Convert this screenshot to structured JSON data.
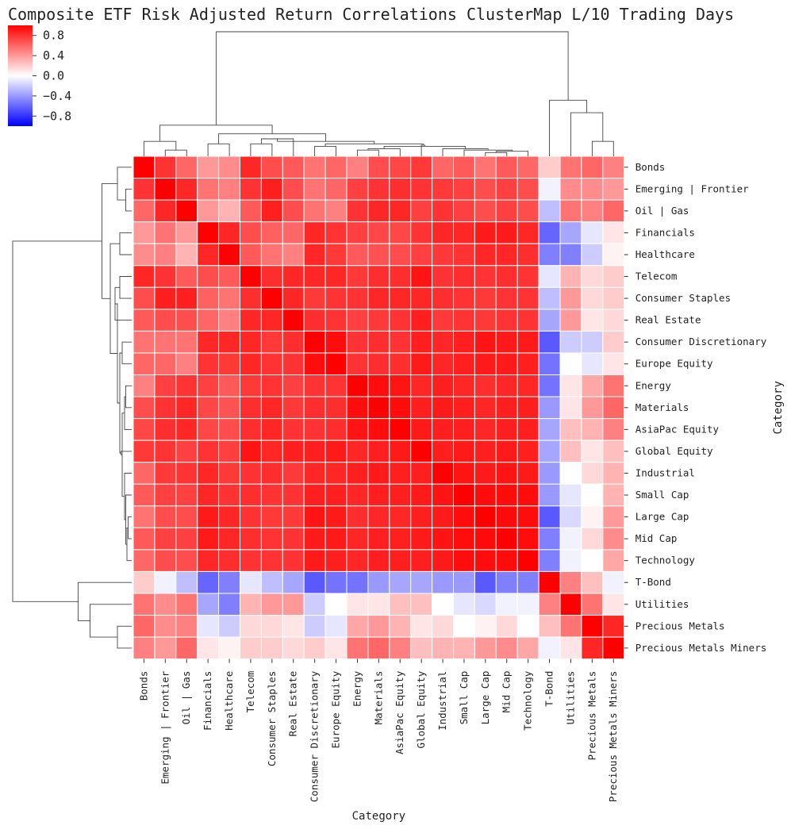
{
  "chart_data": {
    "type": "heatmap",
    "title": "Composite ETF Risk Adjusted Return Correlations ClusterMap L/10 Trading Days",
    "xlabel": "Category",
    "ylabel": "Category",
    "categories": [
      "Bonds",
      "Emerging | Frontier",
      "Oil | Gas",
      "Financials",
      "Healthcare",
      "Telecom",
      "Consumer Staples",
      "Real Estate",
      "Consumer Discretionary",
      "Europe Equity",
      "Energy",
      "Materials",
      "AsiaPac Equity",
      "Global Equity",
      "Industrial",
      "Small Cap",
      "Large Cap",
      "Mid Cap",
      "Technology",
      "T-Bond",
      "Utilities",
      "Precious Metals",
      "Precious Metals Miners"
    ],
    "colorbar": {
      "min": -1,
      "max": 1,
      "ticks": [
        0.8,
        0.4,
        0.0,
        -0.4,
        -0.8
      ],
      "tick_labels": [
        "0.8",
        "0.4",
        "0.0",
        "−0.4",
        "−0.8"
      ],
      "colors": {
        "low": "#0000ff",
        "mid": "#ffffff",
        "high": "#ff0000"
      }
    },
    "values": [
      [
        1.0,
        0.8,
        0.6,
        0.4,
        0.45,
        0.85,
        0.7,
        0.65,
        0.55,
        0.6,
        0.5,
        0.7,
        0.72,
        0.78,
        0.6,
        0.65,
        0.55,
        0.65,
        0.6,
        0.2,
        0.55,
        0.6,
        0.5
      ],
      [
        0.8,
        1.0,
        0.85,
        0.55,
        0.5,
        0.8,
        0.88,
        0.7,
        0.55,
        0.6,
        0.75,
        0.8,
        0.82,
        0.8,
        0.78,
        0.75,
        0.7,
        0.75,
        0.7,
        -0.05,
        0.45,
        0.45,
        0.4
      ],
      [
        0.6,
        0.85,
        1.0,
        0.4,
        0.3,
        0.65,
        0.88,
        0.7,
        0.55,
        0.5,
        0.8,
        0.85,
        0.85,
        0.75,
        0.8,
        0.75,
        0.7,
        0.75,
        0.7,
        -0.25,
        0.55,
        0.5,
        0.6
      ],
      [
        0.4,
        0.55,
        0.4,
        1.0,
        0.85,
        0.7,
        0.62,
        0.6,
        0.85,
        0.8,
        0.75,
        0.72,
        0.72,
        0.8,
        0.85,
        0.85,
        0.9,
        0.9,
        0.85,
        -0.6,
        -0.35,
        -0.1,
        0.1
      ],
      [
        0.45,
        0.5,
        0.3,
        0.85,
        1.0,
        0.65,
        0.55,
        0.5,
        0.85,
        0.78,
        0.65,
        0.68,
        0.7,
        0.75,
        0.78,
        0.8,
        0.85,
        0.85,
        0.82,
        -0.5,
        -0.5,
        -0.2,
        0.05
      ],
      [
        0.85,
        0.8,
        0.65,
        0.7,
        0.65,
        1.0,
        0.82,
        0.85,
        0.85,
        0.85,
        0.78,
        0.82,
        0.82,
        0.92,
        0.8,
        0.82,
        0.8,
        0.82,
        0.8,
        -0.1,
        0.3,
        0.15,
        0.2
      ],
      [
        0.7,
        0.88,
        0.88,
        0.62,
        0.55,
        0.82,
        1.0,
        0.85,
        0.78,
        0.8,
        0.8,
        0.85,
        0.85,
        0.85,
        0.82,
        0.8,
        0.78,
        0.8,
        0.8,
        -0.25,
        0.4,
        0.15,
        0.2
      ],
      [
        0.65,
        0.7,
        0.7,
        0.6,
        0.5,
        0.85,
        0.85,
        1.0,
        0.82,
        0.8,
        0.75,
        0.78,
        0.8,
        0.88,
        0.78,
        0.8,
        0.78,
        0.8,
        0.8,
        -0.35,
        0.4,
        0.1,
        0.15
      ],
      [
        0.55,
        0.55,
        0.55,
        0.85,
        0.85,
        0.85,
        0.78,
        0.82,
        1.0,
        0.95,
        0.8,
        0.82,
        0.8,
        0.88,
        0.85,
        0.88,
        0.92,
        0.9,
        0.9,
        -0.65,
        -0.2,
        -0.2,
        0.2
      ],
      [
        0.6,
        0.6,
        0.5,
        0.8,
        0.78,
        0.85,
        0.8,
        0.8,
        0.95,
        1.0,
        0.8,
        0.82,
        0.82,
        0.9,
        0.85,
        0.88,
        0.9,
        0.9,
        0.88,
        -0.55,
        0.0,
        -0.1,
        0.1
      ],
      [
        0.5,
        0.75,
        0.8,
        0.75,
        0.65,
        0.78,
        0.8,
        0.75,
        0.8,
        0.8,
        1.0,
        0.95,
        0.92,
        0.85,
        0.88,
        0.85,
        0.82,
        0.85,
        0.85,
        -0.55,
        0.1,
        0.35,
        0.55
      ],
      [
        0.7,
        0.8,
        0.85,
        0.72,
        0.68,
        0.82,
        0.85,
        0.78,
        0.82,
        0.82,
        0.95,
        1.0,
        0.95,
        0.88,
        0.9,
        0.88,
        0.85,
        0.88,
        0.88,
        -0.4,
        0.1,
        0.4,
        0.6
      ],
      [
        0.72,
        0.82,
        0.85,
        0.72,
        0.7,
        0.82,
        0.85,
        0.8,
        0.8,
        0.82,
        0.92,
        0.95,
        1.0,
        0.9,
        0.88,
        0.88,
        0.85,
        0.88,
        0.88,
        -0.35,
        0.25,
        0.3,
        0.5
      ],
      [
        0.78,
        0.8,
        0.75,
        0.8,
        0.75,
        0.92,
        0.85,
        0.88,
        0.88,
        0.9,
        0.85,
        0.88,
        0.9,
        1.0,
        0.88,
        0.9,
        0.88,
        0.9,
        0.88,
        -0.35,
        0.25,
        0.1,
        0.25
      ],
      [
        0.6,
        0.78,
        0.8,
        0.85,
        0.78,
        0.8,
        0.82,
        0.78,
        0.85,
        0.85,
        0.88,
        0.9,
        0.88,
        0.88,
        1.0,
        0.92,
        0.9,
        0.92,
        0.9,
        -0.4,
        0.0,
        0.15,
        0.3
      ],
      [
        0.65,
        0.75,
        0.75,
        0.85,
        0.8,
        0.82,
        0.8,
        0.8,
        0.88,
        0.88,
        0.85,
        0.88,
        0.88,
        0.9,
        0.92,
        1.0,
        0.95,
        0.95,
        0.95,
        -0.4,
        -0.1,
        0.0,
        0.3
      ],
      [
        0.55,
        0.7,
        0.7,
        0.9,
        0.85,
        0.8,
        0.78,
        0.78,
        0.92,
        0.9,
        0.82,
        0.85,
        0.85,
        0.88,
        0.9,
        0.95,
        1.0,
        0.96,
        0.95,
        -0.65,
        -0.15,
        0.05,
        0.4
      ],
      [
        0.65,
        0.75,
        0.75,
        0.9,
        0.85,
        0.82,
        0.8,
        0.8,
        0.9,
        0.9,
        0.85,
        0.88,
        0.88,
        0.9,
        0.92,
        0.95,
        0.96,
        1.0,
        0.95,
        -0.5,
        -0.05,
        0.15,
        0.45
      ],
      [
        0.6,
        0.7,
        0.7,
        0.85,
        0.82,
        0.8,
        0.8,
        0.8,
        0.9,
        0.88,
        0.85,
        0.88,
        0.88,
        0.88,
        0.9,
        0.95,
        0.95,
        0.95,
        1.0,
        -0.5,
        -0.05,
        0.0,
        0.35
      ],
      [
        0.2,
        -0.05,
        -0.25,
        -0.6,
        -0.5,
        -0.1,
        -0.25,
        -0.35,
        -0.65,
        -0.55,
        -0.55,
        -0.4,
        -0.35,
        -0.35,
        -0.4,
        -0.4,
        -0.65,
        -0.5,
        -0.5,
        1.0,
        0.5,
        0.25,
        -0.05
      ],
      [
        0.55,
        0.45,
        0.55,
        -0.35,
        -0.5,
        0.3,
        0.4,
        0.4,
        -0.2,
        0.0,
        0.1,
        0.1,
        0.25,
        0.25,
        0.0,
        -0.1,
        -0.15,
        -0.05,
        -0.05,
        0.5,
        1.0,
        0.55,
        0.1
      ],
      [
        0.6,
        0.45,
        0.5,
        -0.1,
        -0.2,
        0.15,
        0.15,
        0.1,
        -0.2,
        -0.1,
        0.35,
        0.4,
        0.3,
        0.1,
        0.15,
        0.0,
        0.05,
        0.15,
        0.0,
        0.25,
        0.55,
        1.0,
        0.85
      ],
      [
        0.5,
        0.4,
        0.6,
        0.1,
        0.05,
        0.2,
        0.2,
        0.15,
        0.2,
        0.1,
        0.55,
        0.6,
        0.5,
        0.25,
        0.3,
        0.3,
        0.4,
        0.45,
        0.35,
        -0.05,
        0.1,
        0.85,
        1.0
      ]
    ]
  }
}
